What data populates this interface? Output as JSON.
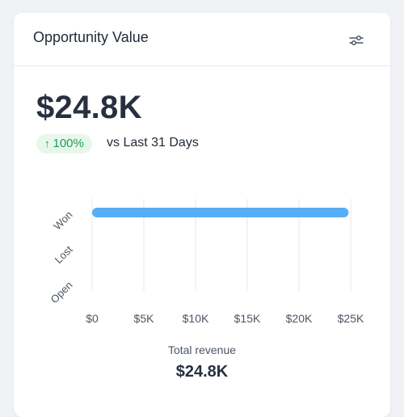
{
  "card": {
    "title": "Opportunity Value",
    "settings_icon": "sliders-icon"
  },
  "summary": {
    "value": "$24.8K",
    "trend_arrow": "↑",
    "trend_percent": "100%",
    "compare_label": "vs Last 31 Days"
  },
  "chart_data": {
    "type": "bar",
    "orientation": "horizontal",
    "categories": [
      "Won",
      "Lost",
      "Open"
    ],
    "values": [
      24800,
      0,
      0
    ],
    "xlabel": "",
    "ylabel": "",
    "xlim": [
      0,
      25000
    ],
    "x_ticks": [
      0,
      5000,
      10000,
      15000,
      20000,
      25000
    ],
    "x_tick_labels": [
      "$0",
      "$5K",
      "$10K",
      "$15K",
      "$20K",
      "$25K"
    ],
    "bar_color": "#57aef5",
    "grid": true,
    "legend": "none"
  },
  "footer": {
    "total_label": "Total revenue",
    "total_value": "$24.8K"
  }
}
